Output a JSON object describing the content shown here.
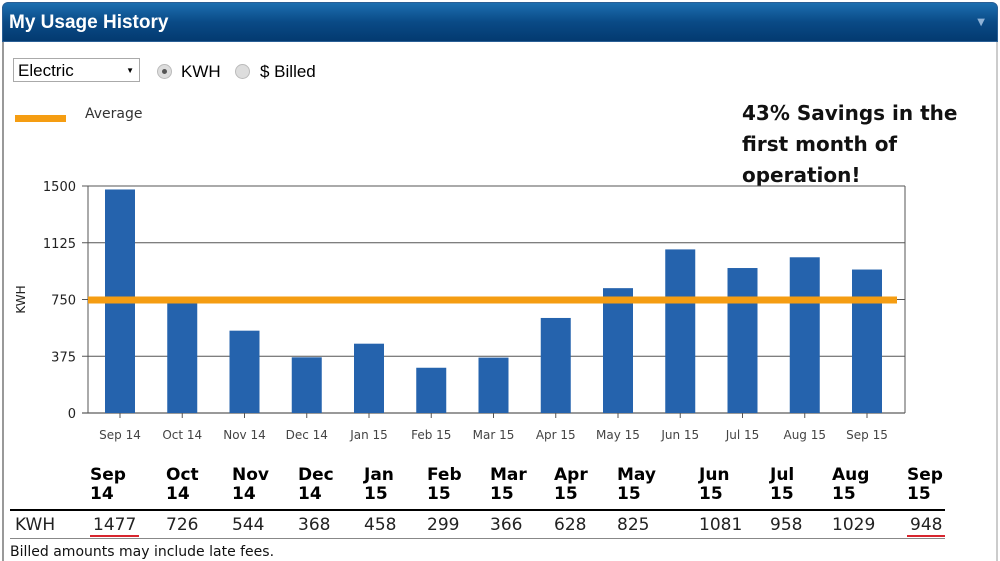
{
  "header": {
    "title": "My Usage History",
    "collapse_icon": "chevron-down-icon"
  },
  "controls": {
    "utility_select": "Electric",
    "radio_kwh": "KWH",
    "radio_billed": "$ Billed",
    "selected": "KWH"
  },
  "legend": {
    "average_label": "Average",
    "average_color": "#f59d12"
  },
  "annotation": "43% Savings in the first month of operation!",
  "chart_data": {
    "type": "bar",
    "categories": [
      "Sep 14",
      "Oct 14",
      "Nov 14",
      "Dec 14",
      "Jan 15",
      "Feb 15",
      "Mar 15",
      "Apr 15",
      "May 15",
      "Jun 15",
      "Jul 15",
      "Aug 15",
      "Sep 15"
    ],
    "values": [
      1477,
      726,
      544,
      368,
      458,
      299,
      366,
      628,
      825,
      1081,
      958,
      1029,
      948
    ],
    "average": 747,
    "ylabel": "KWH",
    "ylim": [
      0,
      1500
    ],
    "yticks": [
      "0",
      "375",
      "750",
      "1125",
      "1500"
    ],
    "grid": true,
    "bar_color": "#2563ad"
  },
  "table": {
    "headers": [
      [
        "Sep",
        "14"
      ],
      [
        "Oct",
        "14"
      ],
      [
        "Nov",
        "14"
      ],
      [
        "Dec",
        "14"
      ],
      [
        "Jan",
        "15"
      ],
      [
        "Feb",
        "15"
      ],
      [
        "Mar",
        "15"
      ],
      [
        "Apr",
        "15"
      ],
      [
        "May",
        "15"
      ],
      [
        "Jun",
        "15"
      ],
      [
        "Jul",
        "15"
      ],
      [
        "Aug",
        "15"
      ],
      [
        "Sep",
        "15"
      ]
    ],
    "row_label": "KWH",
    "values": [
      "1477",
      "726",
      "544",
      "368",
      "458",
      "299",
      "366",
      "628",
      "825",
      "1081",
      "958",
      "1029",
      "948"
    ]
  },
  "note": "Billed amounts may include late fees."
}
